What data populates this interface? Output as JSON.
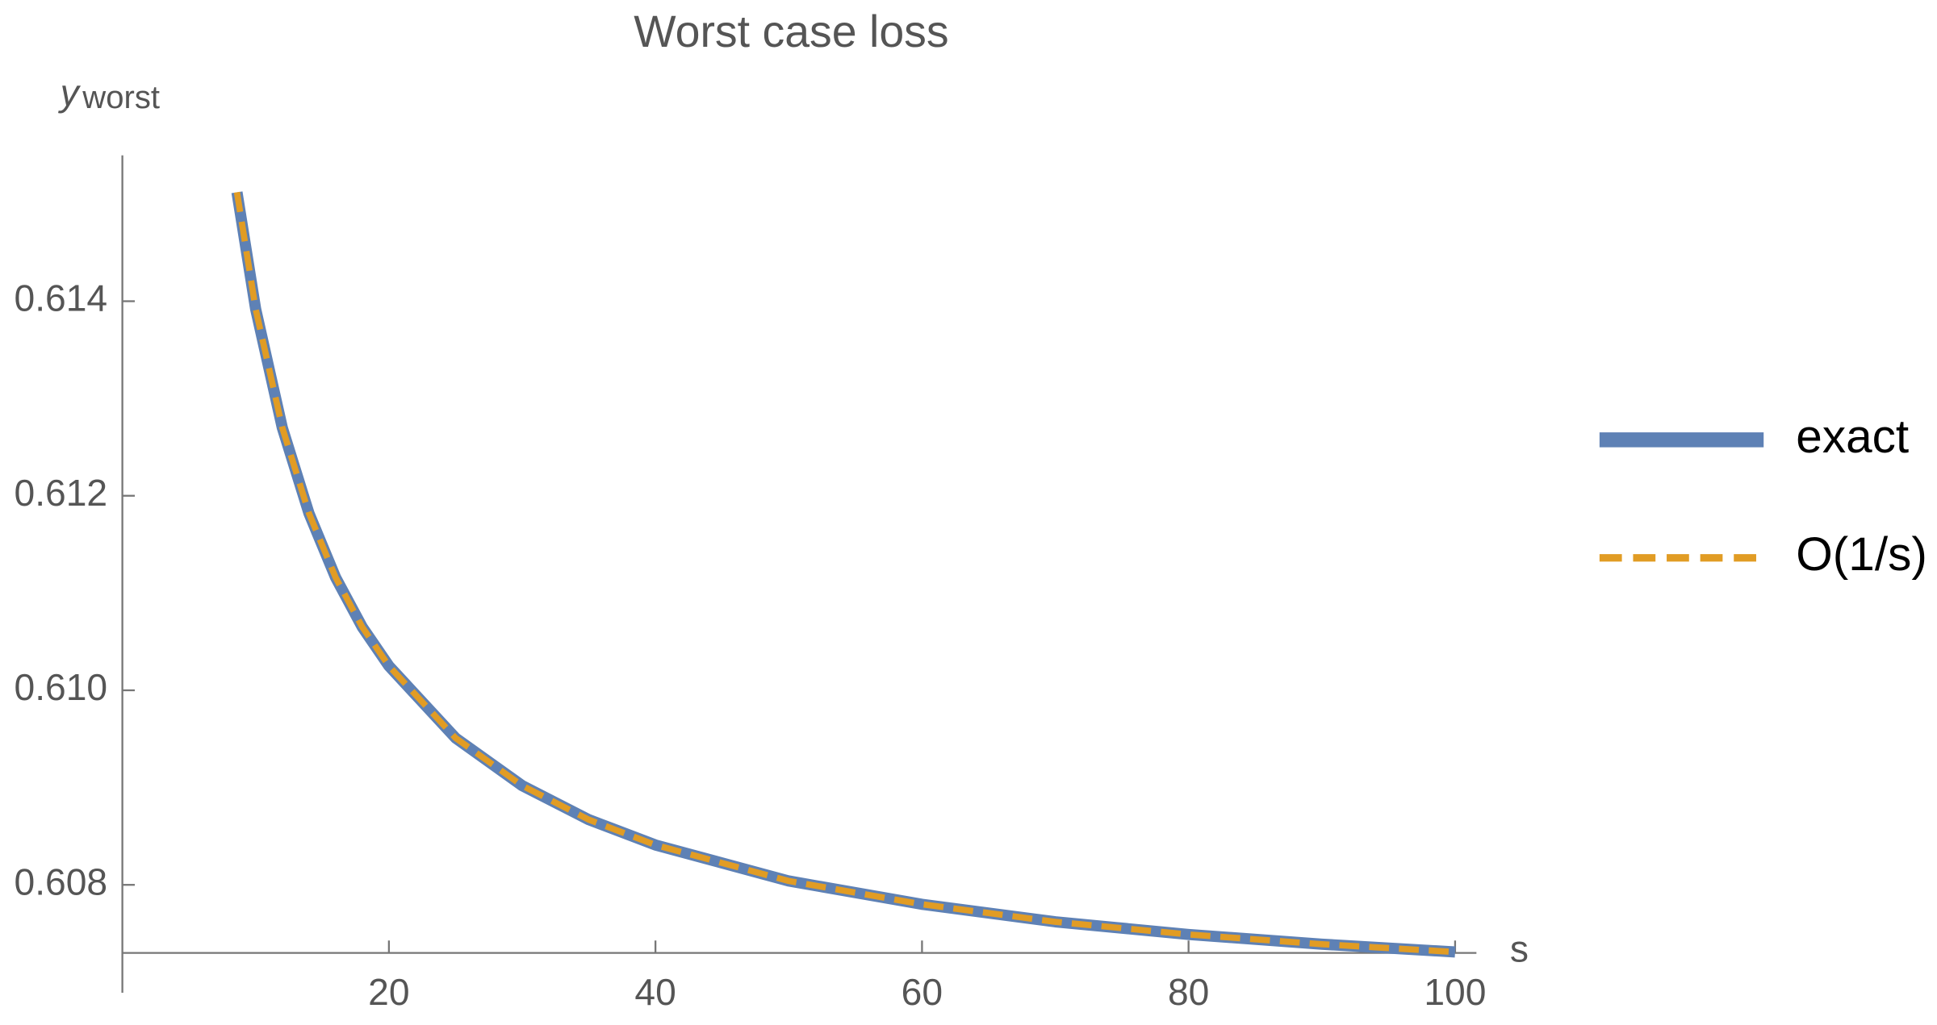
{
  "chart_data": {
    "type": "line",
    "title": "Worst case loss",
    "ylabel": "y",
    "ylabel_subscript": "worst",
    "xlabel": "s",
    "x": [
      8.6,
      10,
      12,
      14,
      16,
      18,
      20,
      25,
      30,
      35,
      40,
      50,
      60,
      70,
      80,
      90,
      100
    ],
    "series": [
      {
        "name": "exact",
        "color": "#5e81b5",
        "dashed": false,
        "values": [
          0.61512,
          0.61392,
          0.6127,
          0.61182,
          0.61116,
          0.61065,
          0.61025,
          0.60951,
          0.60902,
          0.60867,
          0.60841,
          0.60804,
          0.6078,
          0.60762,
          0.60749,
          0.60739,
          0.60731
        ]
      },
      {
        "name": "O(1/s)",
        "color": "#e19c24",
        "dashed": true,
        "values": [
          0.61512,
          0.61392,
          0.6127,
          0.61182,
          0.61116,
          0.61065,
          0.61025,
          0.60951,
          0.60902,
          0.60867,
          0.60841,
          0.60804,
          0.6078,
          0.60762,
          0.60749,
          0.60739,
          0.60731
        ]
      }
    ],
    "xlim": [
      0,
      101.6
    ],
    "ylim": [
      0.6073,
      0.6155
    ],
    "xticks": [
      20,
      40,
      60,
      80,
      100
    ],
    "yticks": [
      {
        "value": 0.608,
        "label": "0.608"
      },
      {
        "value": 0.61,
        "label": "0.610"
      },
      {
        "value": 0.612,
        "label": "0.612"
      },
      {
        "value": 0.614,
        "label": "0.614"
      }
    ],
    "legend": "right"
  }
}
